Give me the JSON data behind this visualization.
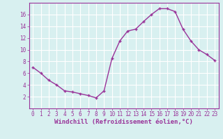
{
  "x": [
    0,
    1,
    2,
    3,
    4,
    5,
    6,
    7,
    8,
    9,
    10,
    11,
    12,
    13,
    14,
    15,
    16,
    17,
    18,
    19,
    20,
    21,
    22,
    23
  ],
  "y": [
    7,
    6,
    4.8,
    4,
    3,
    2.8,
    2.5,
    2.2,
    1.8,
    3,
    8.5,
    11.5,
    13.2,
    13.5,
    14.8,
    16,
    17,
    17,
    16.5,
    13.5,
    11.5,
    10,
    9.2,
    8.2
  ],
  "line_color": "#993399",
  "marker": "+",
  "marker_size": 3.5,
  "linewidth": 1.0,
  "background_color": "#d8f0f0",
  "grid_color": "#ffffff",
  "xlabel": "Windchill (Refroidissement éolien,°C)",
  "xlabel_fontsize": 6.5,
  "xlim": [
    -0.5,
    23.5
  ],
  "ylim": [
    0,
    18
  ],
  "yticks": [
    2,
    4,
    6,
    8,
    10,
    12,
    14,
    16
  ],
  "xticks": [
    0,
    1,
    2,
    3,
    4,
    5,
    6,
    7,
    8,
    9,
    10,
    11,
    12,
    13,
    14,
    15,
    16,
    17,
    18,
    19,
    20,
    21,
    22,
    23
  ],
  "tick_fontsize": 5.5,
  "tick_color": "#993399",
  "label_color": "#993399",
  "spine_color": "#993399"
}
